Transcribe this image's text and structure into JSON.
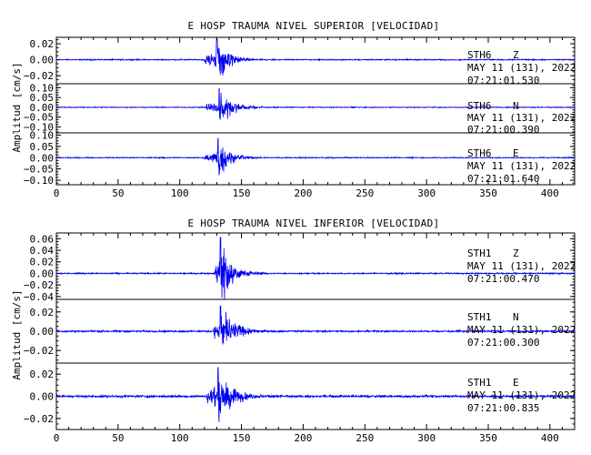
{
  "chart_data": [
    {
      "type": "line",
      "title": "E HOSP TRAUMA NIVEL SUPERIOR [VELOCIDAD]",
      "ylabel": "Amplitud [cm/s]",
      "xlim": [
        0,
        420
      ],
      "xticks": [
        0,
        50,
        100,
        150,
        200,
        250,
        300,
        350,
        400
      ],
      "panels": [
        {
          "station": "STH6",
          "component": "Z",
          "date": "MAY 11 (131), 2022",
          "time": "07:21:01.530",
          "ylim": [
            -0.03,
            0.028
          ],
          "yticks": [
            -0.02,
            0.0,
            0.02
          ],
          "ytick_labels": [
            "−0.02",
            "0.00",
            "0.02"
          ],
          "onset": 120,
          "peak_time": 130,
          "peak": 0.026,
          "noise": 0.0006,
          "decay": 9
        },
        {
          "station": "STH6",
          "component": "N",
          "date": "MAY 11 (131), 2022",
          "time": "07:21:00.390",
          "ylim": [
            -0.13,
            0.12
          ],
          "yticks": [
            -0.1,
            -0.05,
            0.0,
            0.05,
            0.1
          ],
          "ytick_labels": [
            "−0.10",
            "−0.05",
            "0.00",
            "0.05",
            "0.10"
          ],
          "onset": 121,
          "peak_time": 132,
          "peak": 0.095,
          "noise": 0.002,
          "decay": 10
        },
        {
          "station": "STH6",
          "component": "E",
          "date": "MAY 11 (131), 2022",
          "time": "07:21:01.640",
          "ylim": [
            -0.12,
            0.11
          ],
          "yticks": [
            -0.1,
            -0.05,
            0.0,
            0.05,
            0.1
          ],
          "ytick_labels": [
            "−0.10",
            "−0.05",
            "0.00",
            "0.05",
            "0.10"
          ],
          "onset": 120,
          "peak_time": 131,
          "peak": 0.085,
          "noise": 0.002,
          "decay": 9
        }
      ]
    },
    {
      "type": "line",
      "title": "E HOSP TRAUMA NIVEL INFERIOR [VELOCIDAD]",
      "ylabel": "Amplitud [cm/s]",
      "xlim": [
        0,
        420
      ],
      "xticks": [
        0,
        50,
        100,
        150,
        200,
        250,
        300,
        350,
        400
      ],
      "panels": [
        {
          "station": "STH1",
          "component": "Z",
          "date": "MAY 11 (131), 2022",
          "time": "07:21:00.470",
          "ylim": [
            -0.045,
            0.07
          ],
          "yticks": [
            -0.04,
            -0.02,
            0.0,
            0.02,
            0.04,
            0.06
          ],
          "ytick_labels": [
            "−0.04",
            "−0.02",
            "0.00",
            "0.02",
            "0.04",
            "0.06"
          ],
          "onset": 128,
          "peak_time": 133,
          "peak": 0.062,
          "noise": 0.001,
          "decay": 8
        },
        {
          "station": "STH1",
          "component": "N",
          "date": "MAY 11 (131), 2022",
          "time": "07:21:00.300",
          "ylim": [
            -0.033,
            0.033
          ],
          "yticks": [
            -0.02,
            0.0,
            0.02
          ],
          "ytick_labels": [
            "−0.02",
            "0.00",
            "0.02"
          ],
          "onset": 127,
          "peak_time": 133,
          "peak": 0.026,
          "noise": 0.0008,
          "decay": 10
        },
        {
          "station": "STH1",
          "component": "E",
          "date": "MAY 11 (131), 2022",
          "time": "07:21:00.835",
          "ylim": [
            -0.03,
            0.03
          ],
          "yticks": [
            -0.02,
            0.0,
            0.02
          ],
          "ytick_labels": [
            "−0.02",
            "0.00",
            "0.02"
          ],
          "onset": 122,
          "peak_time": 131,
          "peak": 0.026,
          "noise": 0.0009,
          "decay": 10
        }
      ]
    }
  ],
  "colors": {
    "trace": "#0000ee",
    "frame": "#000000",
    "background": "#ffffff"
  }
}
